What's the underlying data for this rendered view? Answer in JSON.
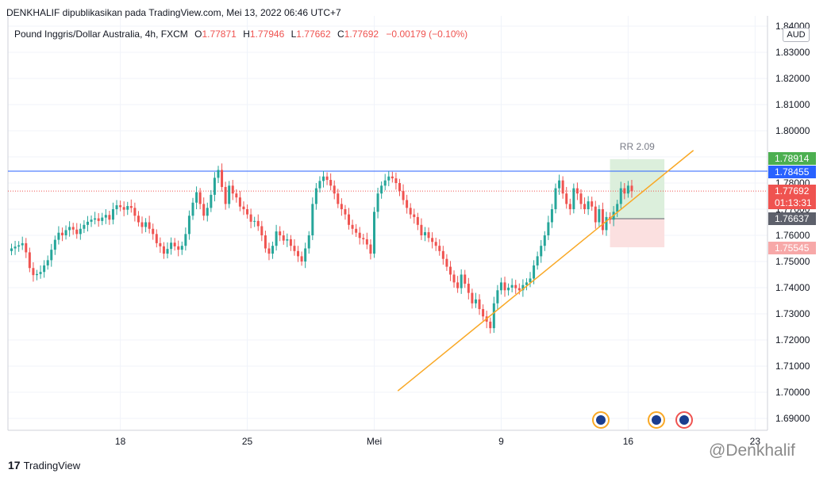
{
  "header": {
    "published_by": "DENKHALIF dipublikasikan pada TradingView.com, Mei 13, 2022 06:46 UTC+7"
  },
  "legend": {
    "symbol": "Pound Inggris/Dollar Australia, 4h, FXCM",
    "o_key": "O",
    "o_val": "1.77871",
    "h_key": "H",
    "h_val": "1.77946",
    "l_key": "L",
    "l_val": "1.77662",
    "c_key": "C",
    "c_val": "1.77692",
    "change": "−0.00179 (−0.10%)"
  },
  "currency": "AUD",
  "price_labels": {
    "target": "1.78914",
    "line": "1.78455",
    "last": "1.77692",
    "countdown": "01:13:31",
    "entry": "1.76637",
    "stop": "1.75545"
  },
  "rr_label": "RR 2.09",
  "footer": {
    "brand_mark": "17",
    "brand": "TradingView"
  },
  "watermark": "@Denkhalif",
  "colors": {
    "up": "#26a69a",
    "down": "#ef5350",
    "hline": "#2962ff",
    "trendline": "#f9a825",
    "target_zone": "#dcefdc",
    "stop_zone": "#fbe0e0"
  },
  "chart_data": {
    "type": "candlestick",
    "ylim": [
      1.685,
      1.845
    ],
    "y_ticks": [
      "1.69000",
      "1.70000",
      "1.71000",
      "1.72000",
      "1.73000",
      "1.74000",
      "1.75000",
      "1.76000",
      "1.77000",
      "1.78000",
      "1.79000",
      "1.80000",
      "1.81000",
      "1.82000",
      "1.83000",
      "1.84000"
    ],
    "x_ticks": [
      {
        "label": "18",
        "bar": 30
      },
      {
        "label": "25",
        "bar": 65
      },
      {
        "label": "Mei",
        "bar": 100
      },
      {
        "label": "9",
        "bar": 135
      },
      {
        "label": "16",
        "bar": 170
      },
      {
        "label": "23",
        "bar": 205
      }
    ],
    "horizontal_line": 1.78455,
    "last_price": 1.77692,
    "trendline": {
      "from": {
        "bar": 106.5,
        "price": 1.7005
      },
      "to": {
        "bar": 188,
        "price": 1.7925
      }
    },
    "position": {
      "start_bar": 165,
      "end_bar": 180,
      "entry": 1.76637,
      "target": 1.78914,
      "stop": 1.75545,
      "rr": 2.09
    },
    "closes": [
      1.755,
      1.7557,
      1.7562,
      1.757,
      1.7535,
      1.7475,
      1.7448,
      1.7452,
      1.746,
      1.7485,
      1.7505,
      1.7545,
      1.7583,
      1.761,
      1.76,
      1.762,
      1.7632,
      1.7622,
      1.7605,
      1.7625,
      1.764,
      1.7652,
      1.766,
      1.7665,
      1.7655,
      1.7668,
      1.7678,
      1.766,
      1.77,
      1.7715,
      1.7708,
      1.7698,
      1.7712,
      1.7705,
      1.7675,
      1.765,
      1.7632,
      1.765,
      1.7625,
      1.7605,
      1.757,
      1.7558,
      1.753,
      1.7548,
      1.7572,
      1.7558,
      1.7545,
      1.756,
      1.7605,
      1.7675,
      1.7725,
      1.7765,
      1.772,
      1.7675,
      1.7705,
      1.7755,
      1.782,
      1.785,
      1.7785,
      1.772,
      1.779,
      1.776,
      1.7745,
      1.771,
      1.77,
      1.768,
      1.7652,
      1.7655,
      1.7635,
      1.76,
      1.755,
      1.753,
      1.756,
      1.7615,
      1.76,
      1.758,
      1.7585,
      1.756,
      1.754,
      1.752,
      1.75,
      1.755,
      1.76,
      1.772,
      1.778,
      1.7808,
      1.7825,
      1.7812,
      1.779,
      1.776,
      1.772,
      1.77,
      1.768,
      1.764,
      1.7625,
      1.761,
      1.759,
      1.7585,
      1.7565,
      1.753,
      1.769,
      1.776,
      1.779,
      1.781,
      1.7825,
      1.7818,
      1.78,
      1.777,
      1.7735,
      1.7705,
      1.768,
      1.767,
      1.764,
      1.76,
      1.7612,
      1.759,
      1.7575,
      1.756,
      1.754,
      1.751,
      1.748,
      1.745,
      1.742,
      1.7398,
      1.745,
      1.7415,
      1.738,
      1.734,
      1.7355,
      1.7318,
      1.729,
      1.727,
      1.7245,
      1.734,
      1.739,
      1.742,
      1.739,
      1.74,
      1.741,
      1.7398,
      1.739,
      1.741,
      1.742,
      1.7435,
      1.7485,
      1.752,
      1.756,
      1.76,
      1.765,
      1.77,
      1.778,
      1.781,
      1.776,
      1.772,
      1.77,
      1.778,
      1.776,
      1.772,
      1.77,
      1.773,
      1.771,
      1.765,
      1.77,
      1.762,
      1.767,
      1.766,
      1.769,
      1.772,
      1.778,
      1.776,
      1.779,
      1.7769
    ]
  }
}
